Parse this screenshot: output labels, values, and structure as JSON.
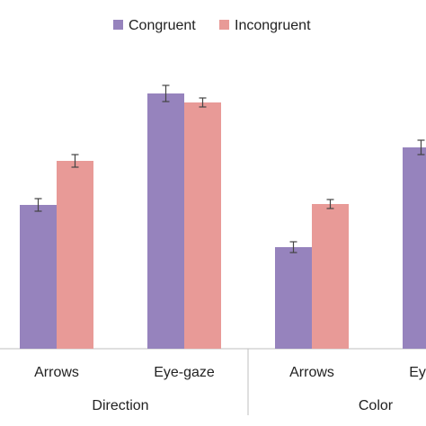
{
  "chart_data": {
    "type": "bar",
    "groups": [
      {
        "name": "Direction",
        "categories": [
          "Arrows",
          "Eye-gaze"
        ]
      },
      {
        "name": "Color",
        "categories": [
          "Arrows",
          "Eye-gaze"
        ]
      }
    ],
    "series": [
      {
        "name": "Congruent",
        "color": "#9683bd",
        "values": [
          160,
          284,
          113,
          224
        ],
        "errors": [
          7,
          9,
          6,
          8
        ]
      },
      {
        "name": "Incongruent",
        "color": "#e89a97",
        "values": [
          209,
          274,
          161,
          null
        ],
        "errors": [
          7,
          5,
          5,
          null
        ]
      }
    ],
    "ylim": [
      0,
      300
    ],
    "legend": "top"
  }
}
